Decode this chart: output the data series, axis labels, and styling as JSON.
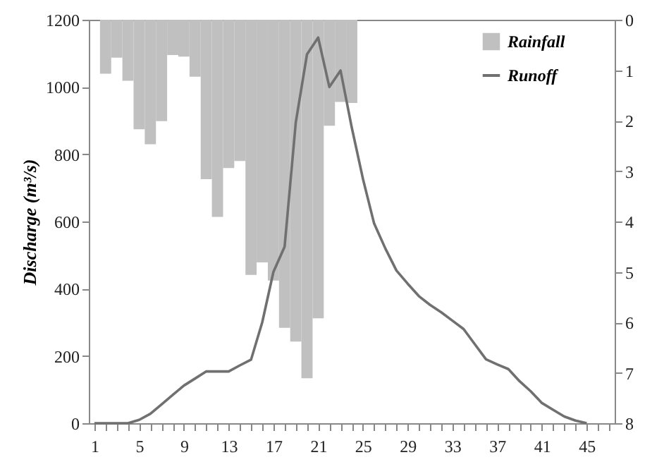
{
  "chart_data": {
    "type": "line",
    "ylabel": "Discharge (m³/s)",
    "xlim": [
      0.5,
      47.5
    ],
    "xticks": [
      1,
      {
        "value": 2,
        "label": null
      },
      {
        "value": 3,
        "label": null
      },
      {
        "value": 4,
        "label": null
      },
      5,
      {
        "value": 6,
        "label": null
      },
      {
        "value": 7,
        "label": null
      },
      {
        "value": 8,
        "label": null
      },
      9,
      {
        "value": 10,
        "label": null
      },
      {
        "value": 11,
        "label": null
      },
      {
        "value": 12,
        "label": null
      },
      13,
      {
        "value": 14,
        "label": null
      },
      {
        "value": 15,
        "label": null
      },
      {
        "value": 16,
        "label": null
      },
      17,
      {
        "value": 18,
        "label": null
      },
      {
        "value": 19,
        "label": null
      },
      {
        "value": 20,
        "label": null
      },
      21,
      {
        "value": 22,
        "label": null
      },
      {
        "value": 23,
        "label": null
      },
      {
        "value": 24,
        "label": null
      },
      25,
      {
        "value": 26,
        "label": null
      },
      {
        "value": 27,
        "label": null
      },
      {
        "value": 28,
        "label": null
      },
      29,
      {
        "value": 30,
        "label": null
      },
      {
        "value": 31,
        "label": null
      },
      {
        "value": 32,
        "label": null
      },
      33,
      {
        "value": 34,
        "label": null
      },
      {
        "value": 35,
        "label": null
      },
      {
        "value": 36,
        "label": null
      },
      37,
      {
        "value": 38,
        "label": null
      },
      {
        "value": 39,
        "label": null
      },
      {
        "value": 40,
        "label": null
      },
      41,
      {
        "value": 42,
        "label": null
      },
      {
        "value": 43,
        "label": null
      },
      {
        "value": 44,
        "label": null
      },
      45,
      {
        "value": 46,
        "label": null
      },
      {
        "value": 47,
        "label": null
      }
    ],
    "ylim": [
      0,
      1200
    ],
    "yticks": [
      0,
      200,
      400,
      600,
      800,
      1000,
      1200
    ],
    "y2lim": [
      8,
      0
    ],
    "y2ticks": [
      0,
      1,
      2,
      3,
      4,
      5,
      6,
      7,
      8
    ],
    "grid": false,
    "legend": "top right",
    "series": [
      {
        "name": "Rainfall",
        "type": "bar",
        "axis": "y2",
        "color": "#c0c0c0",
        "x": [
          2,
          3,
          4,
          5,
          6,
          7,
          8,
          9,
          10,
          11,
          12,
          13,
          14,
          15,
          16,
          17,
          18,
          19,
          20,
          21,
          22,
          23,
          24
        ],
        "values": [
          1.07,
          0.75,
          1.21,
          2.17,
          2.47,
          2.01,
          0.7,
          0.73,
          1.13,
          3.16,
          3.91,
          2.94,
          2.8,
          5.06,
          4.81,
          5.17,
          6.11,
          6.38,
          7.11,
          5.92,
          2.1,
          1.63,
          1.65
        ]
      },
      {
        "name": "Runoff",
        "color": "#707070",
        "x": [
          1,
          2,
          3,
          4,
          5,
          6,
          7,
          8,
          9,
          10,
          11,
          12,
          13,
          14,
          15,
          16,
          17,
          18,
          19,
          20,
          21,
          22,
          23,
          24,
          25,
          26,
          27,
          28,
          29,
          30,
          31,
          32,
          33,
          34,
          35,
          36,
          37,
          38,
          39,
          40,
          41,
          42,
          43,
          44,
          45
        ],
        "values": [
          0,
          0,
          0,
          0,
          10,
          28,
          56,
          84,
          112,
          133,
          154,
          154,
          154,
          172,
          189,
          300,
          450,
          525,
          895,
          1097,
          1147,
          1000,
          1049,
          880,
          727,
          594,
          520,
          454,
          415,
          378,
          352,
          330,
          305,
          280,
          235,
          190,
          175,
          161,
          125,
          95,
          60,
          40,
          20,
          8,
          0
        ]
      }
    ]
  }
}
